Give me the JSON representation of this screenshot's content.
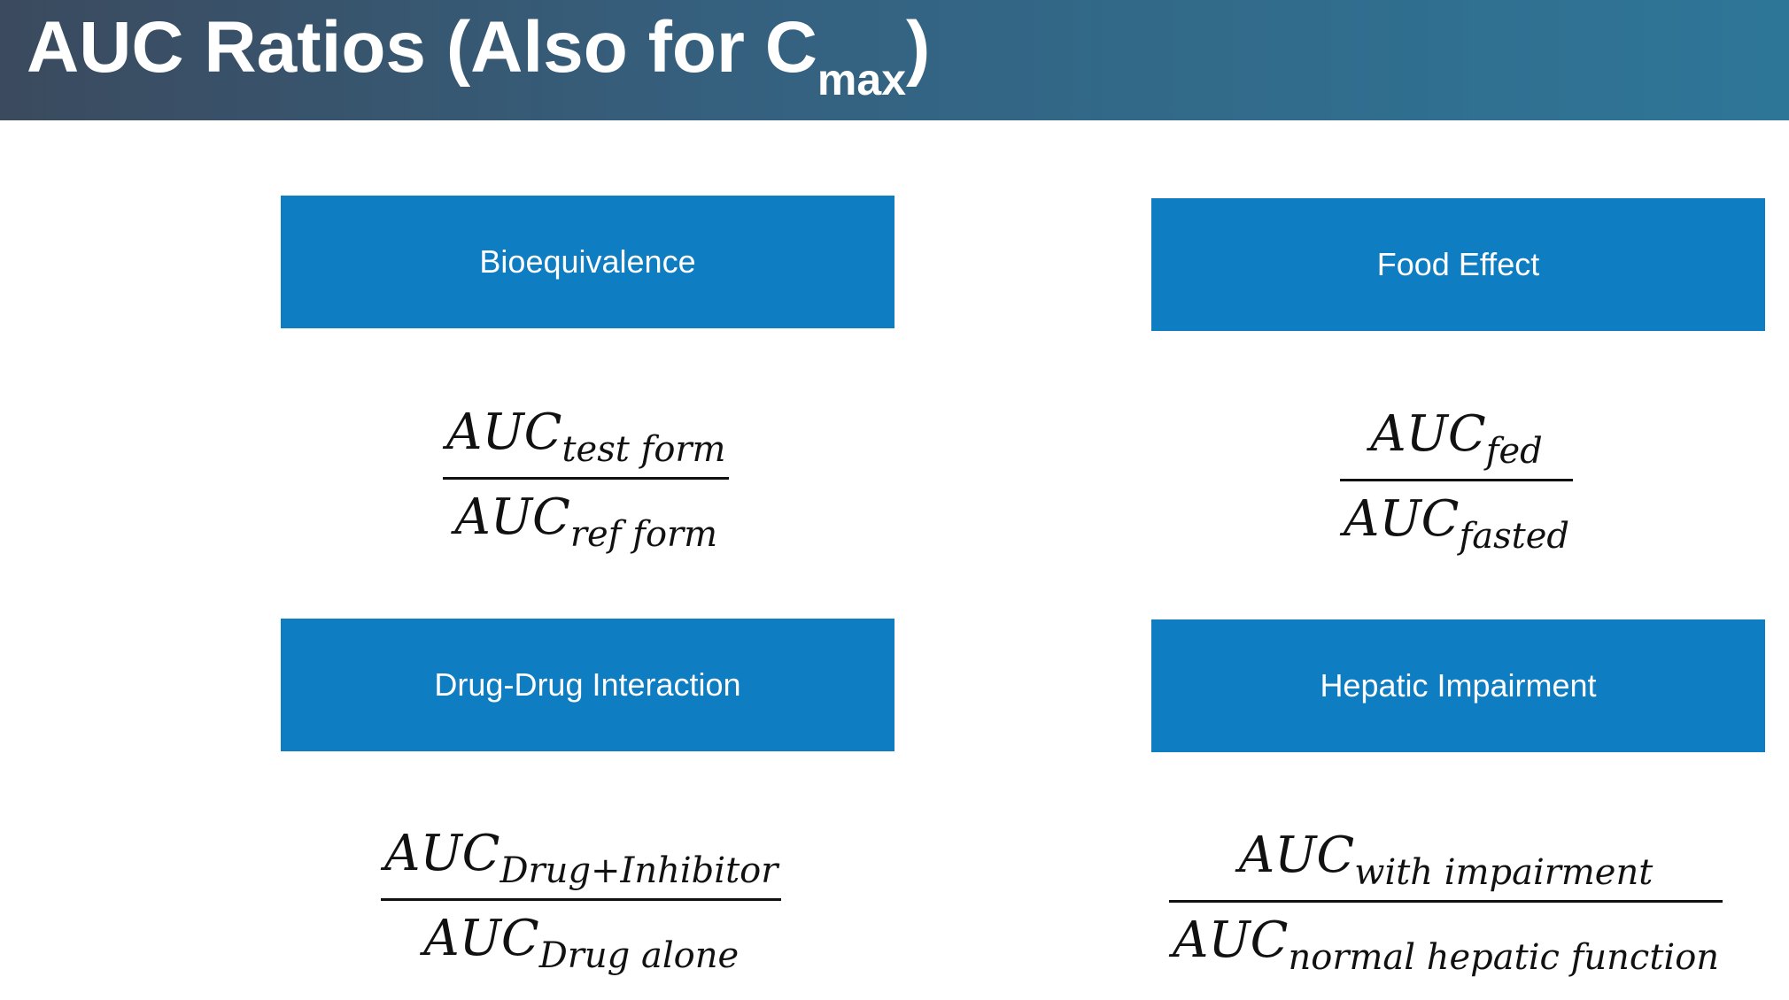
{
  "title": {
    "main": "AUC Ratios (Also for C",
    "subscript": "max",
    "close": ")"
  },
  "sections": [
    {
      "label": "Bioequivalence",
      "numerator": {
        "base": "AUC",
        "sub": "test form"
      },
      "denominator": {
        "base": "AUC",
        "sub": "ref form"
      }
    },
    {
      "label": "Food Effect",
      "numerator": {
        "base": "AUC",
        "sub": "fed"
      },
      "denominator": {
        "base": "AUC",
        "sub": "fasted"
      }
    },
    {
      "label": "Drug-Drug Interaction",
      "numerator": {
        "base": "AUC",
        "sub": "Drug+Inhibitor"
      },
      "denominator": {
        "base": "AUC",
        "sub": "Drug alone"
      }
    },
    {
      "label": "Hepatic Impairment",
      "numerator": {
        "base": "AUC",
        "sub": "with impairment"
      },
      "denominator": {
        "base": "AUC",
        "sub": "normal hepatic function"
      }
    }
  ],
  "colors": {
    "box": "#0f7dc2",
    "title_bar_start": "#3b4a5e",
    "title_bar_end": "#2e7698"
  }
}
